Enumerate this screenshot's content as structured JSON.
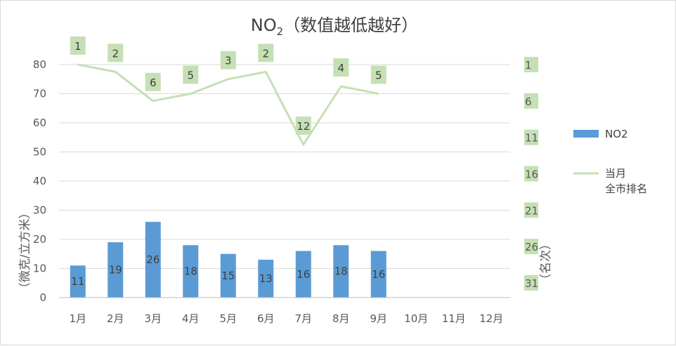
{
  "chart_data": {
    "type": "bar",
    "title": "NO",
    "title_subscript": "2",
    "title_suffix": "（数值越低越好）",
    "categories": [
      "1月",
      "2月",
      "3月",
      "4月",
      "5月",
      "6月",
      "7月",
      "8月",
      "9月",
      "10月",
      "11月",
      "12月"
    ],
    "ylabel": "（微克/立方米）",
    "y2label": "（名次）",
    "ylim": [
      0,
      80
    ],
    "y_ticks": [
      "0",
      "10",
      "20",
      "30",
      "40",
      "50",
      "60",
      "70",
      "80"
    ],
    "y2lim": [
      1,
      31
    ],
    "y2_ticks": [
      "1",
      "6",
      "11",
      "16",
      "21",
      "26",
      "31"
    ],
    "y2_inverted": true,
    "grid": true,
    "legend_position": "right",
    "series": [
      {
        "name": "NO2",
        "type": "bar",
        "axis": "left",
        "color": "#5b9bd5",
        "values": [
          11,
          19,
          26,
          18,
          15,
          13,
          16,
          18,
          16,
          null,
          null,
          null
        ]
      },
      {
        "name": "当月\n全市排名",
        "name_lines": [
          "当月",
          "全市排名"
        ],
        "type": "line",
        "axis": "right",
        "color": "#c5e0b4",
        "values": [
          1,
          2,
          6,
          5,
          3,
          2,
          12,
          4,
          5,
          null,
          null,
          null
        ]
      }
    ],
    "label_box_color": "#c5e0b4",
    "gridline_color": "#d9d9d9"
  }
}
